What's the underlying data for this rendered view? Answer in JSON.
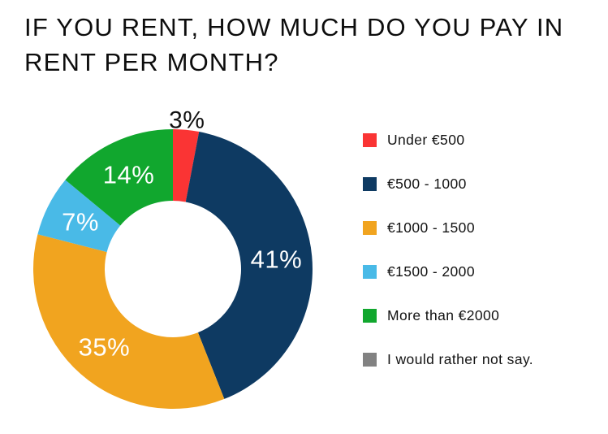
{
  "title": "IF YOU RENT, HOW MUCH DO YOU PAY IN RENT PER MONTH?",
  "colors": {
    "background": "#ffffff",
    "title_text": "#0d0d0d",
    "inside_label_text": "#ffffff",
    "outside_label_text": "#111111"
  },
  "chart_data": {
    "type": "pie",
    "subtype": "donut",
    "title": "IF YOU RENT, HOW MUCH DO YOU PAY IN RENT PER MONTH?",
    "value_suffix": "%",
    "inner_radius_ratio": 0.49,
    "start_angle_deg": 0,
    "direction": "clockwise",
    "legend_position": "right",
    "segments": [
      {
        "label": "Under €500",
        "value": 3,
        "color": "#FA3434",
        "label_position": "outside"
      },
      {
        "label": "€500 - 1000",
        "value": 41,
        "color": "#0E3A62",
        "label_position": "inside"
      },
      {
        "label": "€1000 - 1500",
        "value": 35,
        "color": "#F1A41F",
        "label_position": "inside"
      },
      {
        "label": "€1500 - 2000",
        "value": 7,
        "color": "#49BAE7",
        "label_position": "inside"
      },
      {
        "label": "More than €2000",
        "value": 14,
        "color": "#11A72E",
        "label_position": "inside"
      },
      {
        "label": "I would rather not say.",
        "value": null,
        "color": "#828282",
        "label_position": "none"
      }
    ]
  }
}
